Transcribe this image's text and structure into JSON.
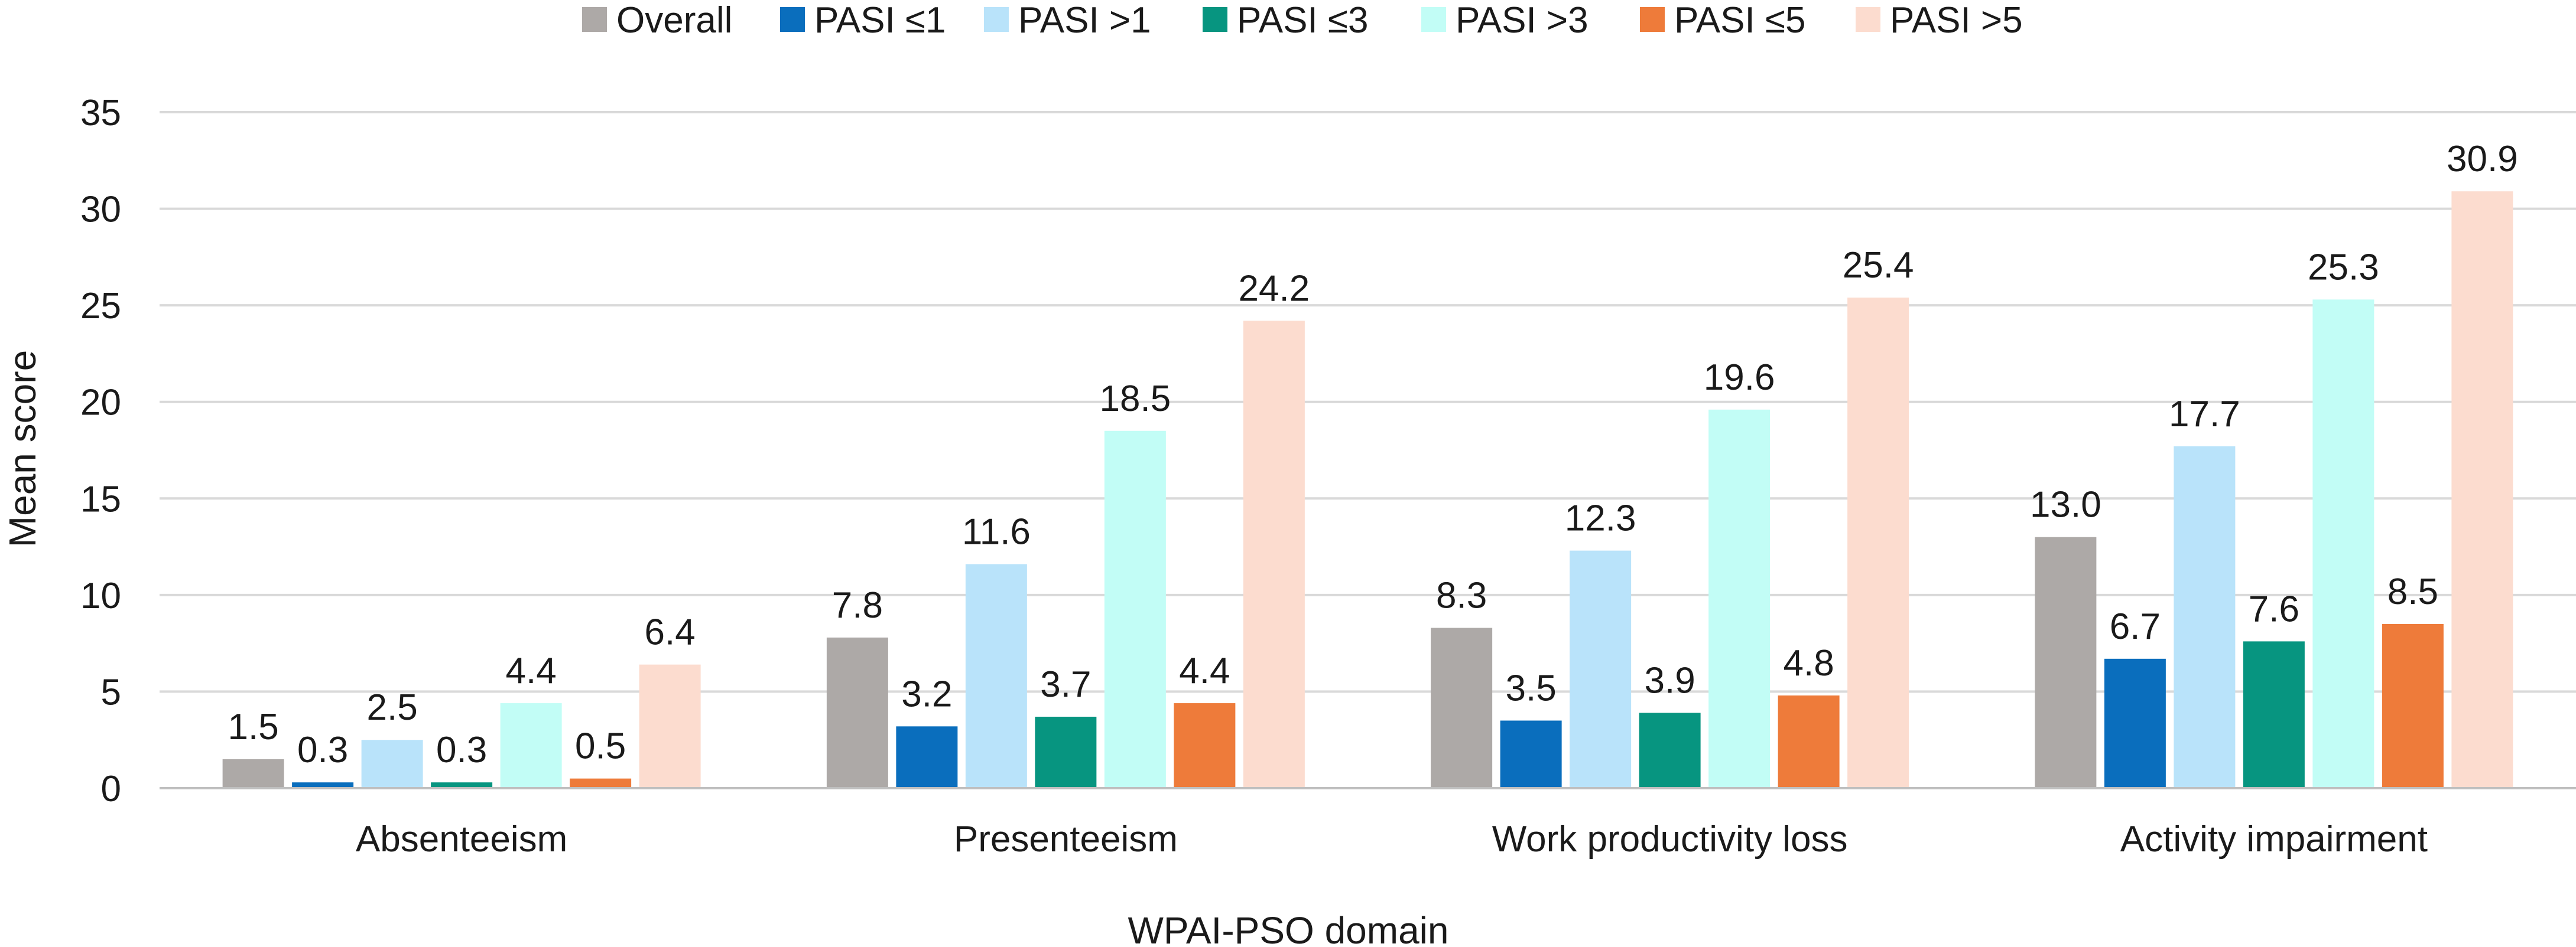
{
  "chart_data": {
    "type": "bar",
    "title": "",
    "xlabel": "WPAI-PSO domain",
    "ylabel": "Mean score",
    "ylim": [
      0,
      35
    ],
    "yticks": [
      0,
      5,
      10,
      15,
      20,
      25,
      30,
      35
    ],
    "grid": true,
    "legend_position": "top",
    "categories": [
      "Absenteeism",
      "Presenteeism",
      "Work productivity loss",
      "Activity impairment"
    ],
    "series": [
      {
        "name": "Overall",
        "color": "#ADA9A7",
        "values": [
          1.5,
          7.8,
          8.3,
          13.0
        ],
        "labels": [
          "1.5",
          "7.8",
          "8.3",
          "13.0"
        ]
      },
      {
        "name": "PASI ≤1",
        "color": "#0A6EBD",
        "values": [
          0.3,
          3.2,
          3.5,
          6.7
        ],
        "labels": [
          "0.3",
          "3.2",
          "3.5",
          "6.7"
        ]
      },
      {
        "name": "PASI >1",
        "color": "#B9E3FA",
        "values": [
          2.5,
          11.6,
          12.3,
          17.7
        ],
        "labels": [
          "2.5",
          "11.6",
          "12.3",
          "17.7"
        ]
      },
      {
        "name": "PASI ≤3",
        "color": "#079580",
        "values": [
          0.3,
          3.7,
          3.9,
          7.6
        ],
        "labels": [
          "0.3",
          "3.7",
          "3.9",
          "7.6"
        ]
      },
      {
        "name": "PASI >3",
        "color": "#C2FDF6",
        "values": [
          4.4,
          18.5,
          19.6,
          25.3
        ],
        "labels": [
          "4.4",
          "18.5",
          "19.6",
          "25.3"
        ]
      },
      {
        "name": "PASI ≤5",
        "color": "#EE7B3A",
        "values": [
          0.5,
          4.4,
          4.8,
          8.5
        ],
        "labels": [
          "0.5",
          "4.4",
          "4.8",
          "8.5"
        ]
      },
      {
        "name": "PASI >5",
        "color": "#FCDCCF",
        "values": [
          6.4,
          24.2,
          25.4,
          30.9
        ],
        "labels": [
          "6.4",
          "24.2",
          "25.4",
          "30.9"
        ]
      }
    ]
  }
}
